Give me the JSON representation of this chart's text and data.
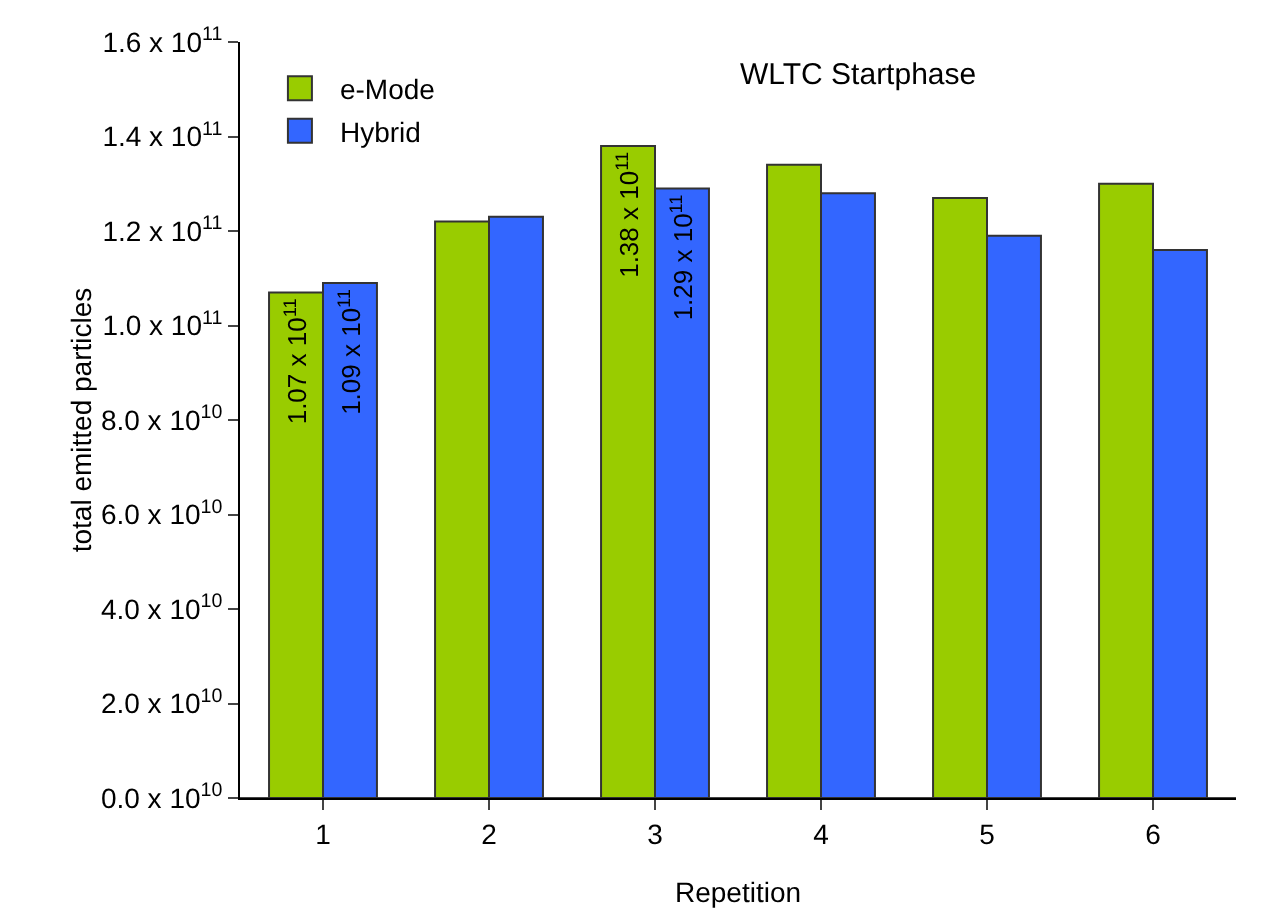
{
  "chart_data": {
    "type": "bar",
    "title": "WLTC Startphase",
    "xlabel": "Repetition",
    "ylabel": "total emitted particles",
    "categories": [
      "1",
      "2",
      "3",
      "4",
      "5",
      "6"
    ],
    "series": [
      {
        "name": "e-Mode",
        "color": "#99cc00",
        "values": [
          107000000000.0,
          122000000000.0,
          138000000000.0,
          134000000000.0,
          127000000000.0,
          130000000000.0
        ],
        "value_labels": [
          "1.07 x 10$^{11}$",
          null,
          "1.38 x 10$^{11}$",
          null,
          null,
          null
        ]
      },
      {
        "name": "Hybrid",
        "color": "#3366ff",
        "values": [
          109000000000.0,
          123000000000.0,
          129000000000.0,
          128000000000.0,
          119000000000.0,
          116000000000.0
        ],
        "value_labels": [
          "1.09 x 10$^{11}$",
          null,
          "1.29 x 10$^{11}$",
          null,
          null,
          null
        ]
      }
    ],
    "ylim": [
      0,
      160000000000.0
    ],
    "yticks": [
      {
        "value": 0,
        "label": "0.0 x 10$^{10}$"
      },
      {
        "value": 20000000000.0,
        "label": "2.0 x 10$^{10}$"
      },
      {
        "value": 40000000000.0,
        "label": "4.0 x 10$^{10}$"
      },
      {
        "value": 60000000000.0,
        "label": "6.0 x 10$^{10}$"
      },
      {
        "value": 80000000000.0,
        "label": "8.0 x 10$^{10}$"
      },
      {
        "value": 100000000000.0,
        "label": "1.0 x 10$^{11}$"
      },
      {
        "value": 120000000000.0,
        "label": "1.2 x 10$^{11}$"
      },
      {
        "value": 140000000000.0,
        "label": "1.4 x 10$^{11}$"
      },
      {
        "value": 160000000000.0,
        "label": "1.6 x 10$^{11}$"
      }
    ],
    "legend": "top left",
    "grid": false
  }
}
